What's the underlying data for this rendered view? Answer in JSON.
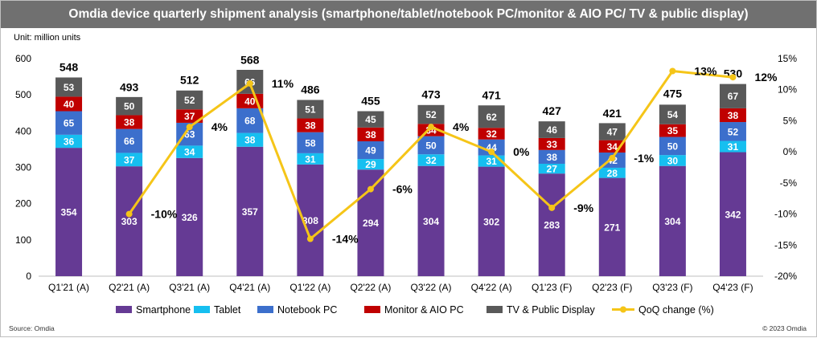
{
  "title": "Omdia device quarterly shipment analysis (smartphone/tablet/notebook PC/monitor & AIO PC/ TV & public display)",
  "unit_label": "Unit: million units",
  "source": "Source: Omdia",
  "copyright": "© 2023 Omdia",
  "colors": {
    "smartphone": "#653a94",
    "tablet": "#16bff0",
    "notebook": "#3c6fcc",
    "monitor": "#c00000",
    "tv": "#595959",
    "qoq": "#f5c518"
  },
  "chart_data": {
    "type": "bar",
    "stacked": true,
    "categories": [
      "Q1'21 (A)",
      "Q2'21 (A)",
      "Q3'21 (A)",
      "Q4'21 (A)",
      "Q1'22 (A)",
      "Q2'22 (A)",
      "Q3'22 (A)",
      "Q4'22 (A)",
      "Q1'23 (F)",
      "Q2'23 (F)",
      "Q3'23 (F)",
      "Q4'23 (F)"
    ],
    "series": [
      {
        "name": "Smartphone",
        "color_key": "smartphone",
        "values": [
          354,
          303,
          326,
          357,
          308,
          294,
          304,
          302,
          283,
          271,
          304,
          342
        ]
      },
      {
        "name": "Tablet",
        "color_key": "tablet",
        "values": [
          36,
          37,
          34,
          38,
          31,
          29,
          32,
          31,
          27,
          28,
          30,
          31
        ]
      },
      {
        "name": "Notebook PC",
        "color_key": "notebook",
        "values": [
          65,
          66,
          63,
          68,
          58,
          49,
          50,
          44,
          38,
          42,
          50,
          52
        ]
      },
      {
        "name": "Monitor & AIO PC",
        "color_key": "monitor",
        "values": [
          40,
          38,
          37,
          40,
          38,
          38,
          34,
          32,
          33,
          34,
          35,
          38
        ]
      },
      {
        "name": "TV & Public Display",
        "color_key": "tv",
        "values": [
          53,
          50,
          52,
          66,
          51,
          45,
          52,
          62,
          46,
          47,
          54,
          67
        ]
      }
    ],
    "totals": [
      548,
      493,
      512,
      568,
      486,
      455,
      473,
      471,
      427,
      421,
      475,
      530
    ],
    "line_series": {
      "name": "QoQ change (%)",
      "color_key": "qoq",
      "values": [
        null,
        -10,
        4,
        11,
        -14,
        -6,
        4,
        0,
        -9,
        -1,
        13,
        12
      ],
      "labels": [
        null,
        "-10%",
        "4%",
        "11%",
        "-14%",
        "-6%",
        "4%",
        "0%",
        "-9%",
        "-1%",
        "13%",
        "12%"
      ]
    },
    "y_left": {
      "min": 0,
      "max": 600,
      "ticks": [
        0,
        100,
        200,
        300,
        400,
        500,
        600
      ],
      "tick_labels": [
        "0",
        "100",
        "200",
        "300",
        "400",
        "500",
        "600"
      ]
    },
    "y_right": {
      "min": -20,
      "max": 15,
      "ticks": [
        -20,
        -15,
        -10,
        -5,
        0,
        5,
        10,
        15
      ],
      "tick_labels": [
        "-20%",
        "-15%",
        "-10%",
        "-5%",
        "0%",
        "5%",
        "10%",
        "15%"
      ]
    },
    "legend": [
      "Smartphone",
      "Tablet",
      "Notebook PC",
      "Monitor & AIO PC",
      "TV & Public Display",
      "QoQ change (%)"
    ],
    "legend_position": "bottom"
  }
}
